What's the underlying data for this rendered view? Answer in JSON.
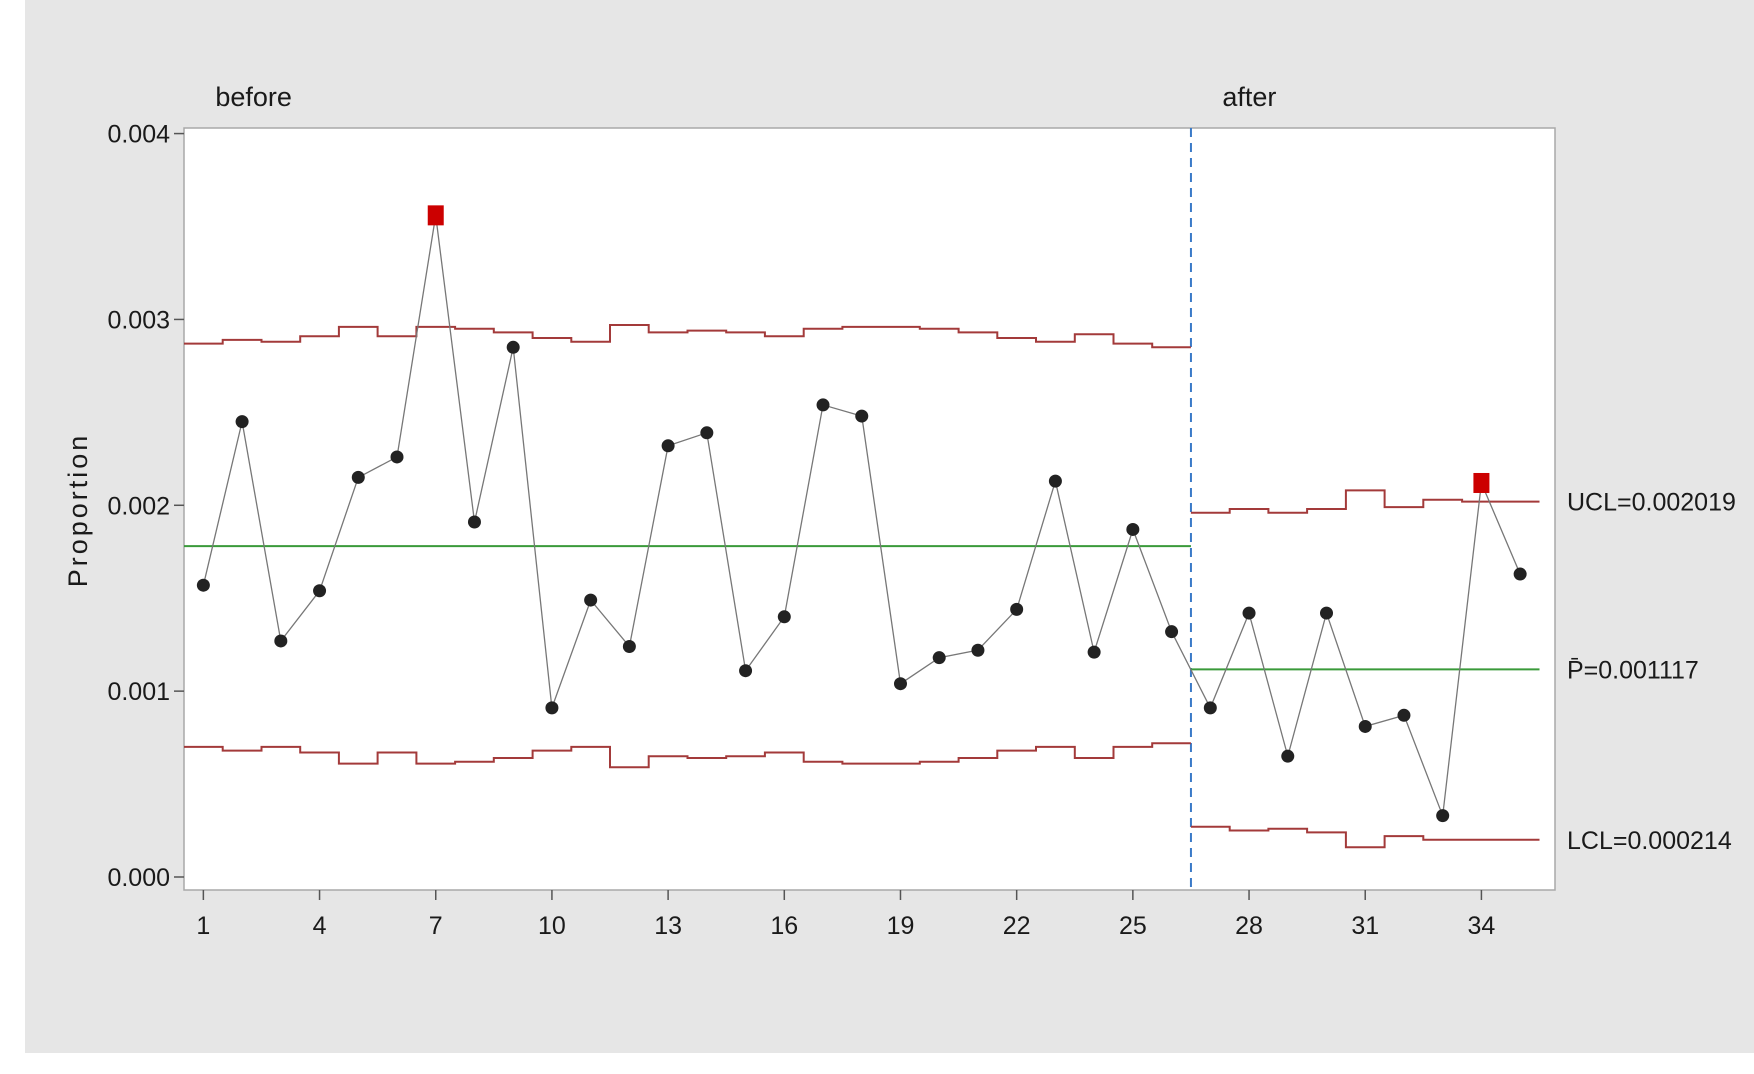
{
  "chart_data": {
    "type": "line",
    "subtype": "P chart (control chart) by stage",
    "ylabel": "Proportion",
    "xlabel": "",
    "xlim": [
      0.5,
      35.9
    ],
    "ylim": [
      -7e-05,
      0.00403
    ],
    "yticks": [
      "0.000",
      "0.001",
      "0.002",
      "0.003",
      "0.004"
    ],
    "ytick_values": [
      0,
      0.001,
      0.002,
      0.003,
      0.004
    ],
    "xticks": [
      1,
      4,
      7,
      10,
      13,
      16,
      19,
      22,
      25,
      28,
      31,
      34
    ],
    "stage_split_after": 26,
    "grid": false,
    "colors": {
      "points": "#222222",
      "out_of_control": "#cc0000",
      "center_line": "#3a9a3a",
      "limits": "#a33a3a",
      "stage_divider": "#3a7ac8",
      "connector": "#777777"
    },
    "stages": [
      {
        "label": "before",
        "start": 1,
        "end": 26,
        "center": 0.00178,
        "ucl": [
          0.00287,
          0.00289,
          0.00288,
          0.00291,
          0.00296,
          0.00291,
          0.00296,
          0.00295,
          0.00293,
          0.0029,
          0.00288,
          0.00297,
          0.00293,
          0.00294,
          0.00293,
          0.00291,
          0.00295,
          0.00296,
          0.00296,
          0.00295,
          0.00293,
          0.0029,
          0.00288,
          0.00292,
          0.00287,
          0.00285
        ],
        "lcl": [
          0.0007,
          0.00068,
          0.0007,
          0.00067,
          0.00061,
          0.00067,
          0.00061,
          0.00062,
          0.00064,
          0.00068,
          0.0007,
          0.00059,
          0.00065,
          0.00064,
          0.00065,
          0.00067,
          0.00062,
          0.00061,
          0.00061,
          0.00062,
          0.00064,
          0.00068,
          0.0007,
          0.00064,
          0.0007,
          0.00072
        ],
        "points": [
          0.00157,
          0.00245,
          0.00127,
          0.00154,
          0.00215,
          0.00226,
          0.00356,
          0.00191,
          0.00285,
          0.00091,
          0.00149,
          0.00124,
          0.00232,
          0.00239,
          0.00111,
          0.0014,
          0.00254,
          0.00248,
          0.00104,
          0.00118,
          0.00122,
          0.00144,
          0.00213,
          0.00121,
          0.00187,
          0.00132
        ],
        "out_of_control": [
          7
        ]
      },
      {
        "label": "after",
        "start": 27,
        "end": 35,
        "center": 0.001117,
        "ucl": [
          0.00196,
          0.00198,
          0.00196,
          0.00198,
          0.00208,
          0.00199,
          0.00203,
          0.00202,
          0.00202
        ],
        "lcl": [
          0.00027,
          0.00025,
          0.00026,
          0.00024,
          0.00016,
          0.00022,
          0.0002,
          0.0002,
          0.0002
        ],
        "points": [
          0.00091,
          0.00142,
          0.00065,
          0.00142,
          0.00081,
          0.00087,
          0.00033,
          0.00212,
          0.00163
        ],
        "out_of_control": [
          34
        ]
      }
    ],
    "limit_labels": {
      "ucl": "UCL=0.002019",
      "center": "P̄=0.001117",
      "lcl": "LCL=0.000214"
    }
  }
}
